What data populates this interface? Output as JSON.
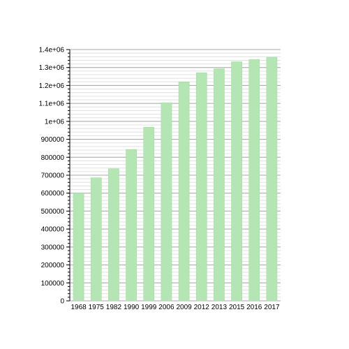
{
  "chart_data": {
    "type": "bar",
    "categories": [
      "1968",
      "1975",
      "1982",
      "1990",
      "1999",
      "2006",
      "2009",
      "2012",
      "2013",
      "2015",
      "2016",
      "2017"
    ],
    "values": [
      600000,
      686000,
      736000,
      843000,
      967000,
      1104000,
      1220000,
      1271000,
      1293000,
      1332000,
      1344000,
      1357000
    ],
    "ylim": [
      0,
      1400000
    ],
    "yticks": [
      0,
      100000,
      200000,
      300000,
      400000,
      500000,
      600000,
      700000,
      800000,
      900000,
      1000000,
      1100000,
      1200000,
      1300000,
      1400000
    ],
    "ytick_labels": [
      "0",
      "100000",
      "200000",
      "300000",
      "400000",
      "500000",
      "600000",
      "700000",
      "800000",
      "900000",
      "1e+06",
      "1.1e+06",
      "1.2e+06",
      "1.3e+06",
      "1.4e+06"
    ],
    "grid": true,
    "legend": false,
    "title": "",
    "xlabel": "",
    "ylabel": "",
    "colors": {
      "bar_fill": "#b3e6b3",
      "bar_edge": "#9fd69f",
      "grid_major": "#a8a8a8",
      "grid_minor": "#e0e0e0",
      "axis": "#000000"
    }
  }
}
